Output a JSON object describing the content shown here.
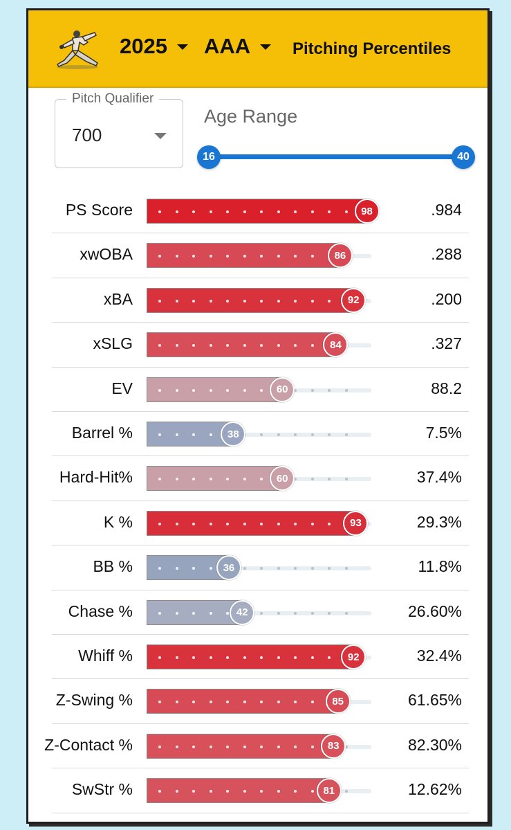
{
  "header": {
    "year": "2025",
    "level": "AAA",
    "title": "Pitching Percentiles"
  },
  "filters": {
    "pitch_qualifier_label": "Pitch Qualifier",
    "pitch_qualifier_value": "700",
    "age_range_label": "Age Range",
    "age_min": "16",
    "age_max": "40"
  },
  "metrics": [
    {
      "label": "PS Score",
      "percentile": 98,
      "percentile_text": "98",
      "value": ".984",
      "color": "#d9202b"
    },
    {
      "label": "xwOBA",
      "percentile": 86,
      "percentile_text": "86",
      "value": ".288",
      "color": "#d74a55"
    },
    {
      "label": "xBA",
      "percentile": 92,
      "percentile_text": "92",
      "value": ".200",
      "color": "#d8323c"
    },
    {
      "label": "xSLG",
      "percentile": 84,
      "percentile_text": "84",
      "value": ".327",
      "color": "#d74d58"
    },
    {
      "label": "EV",
      "percentile": 60,
      "percentile_text": "60",
      "value": "88.2",
      "color": "#c9a0a8"
    },
    {
      "label": "Barrel %",
      "percentile": 38,
      "percentile_text": "38",
      "value": "7.5%",
      "color": "#9aa6bf"
    },
    {
      "label": "Hard-Hit%",
      "percentile": 60,
      "percentile_text": "60",
      "value": "37.4%",
      "color": "#c9a0a8"
    },
    {
      "label": "K %",
      "percentile": 93,
      "percentile_text": "93",
      "value": "29.3%",
      "color": "#d82e39"
    },
    {
      "label": "BB %",
      "percentile": 36,
      "percentile_text": "36",
      "value": "11.8%",
      "color": "#97a4be"
    },
    {
      "label": "Chase %",
      "percentile": 42,
      "percentile_text": "42",
      "value": "26.60%",
      "color": "#a6adc0"
    },
    {
      "label": "Whiff %",
      "percentile": 92,
      "percentile_text": "92",
      "value": "32.4%",
      "color": "#d8323c"
    },
    {
      "label": "Z-Swing %",
      "percentile": 85,
      "percentile_text": "85",
      "value": "61.65%",
      "color": "#d74b56"
    },
    {
      "label": "Z-Contact %",
      "percentile": 83,
      "percentile_text": "83",
      "value": "82.30%",
      "color": "#d7505a"
    },
    {
      "label": "SwStr %",
      "percentile": 81,
      "percentile_text": "81",
      "value": "12.62%",
      "color": "#d6535d"
    }
  ]
}
